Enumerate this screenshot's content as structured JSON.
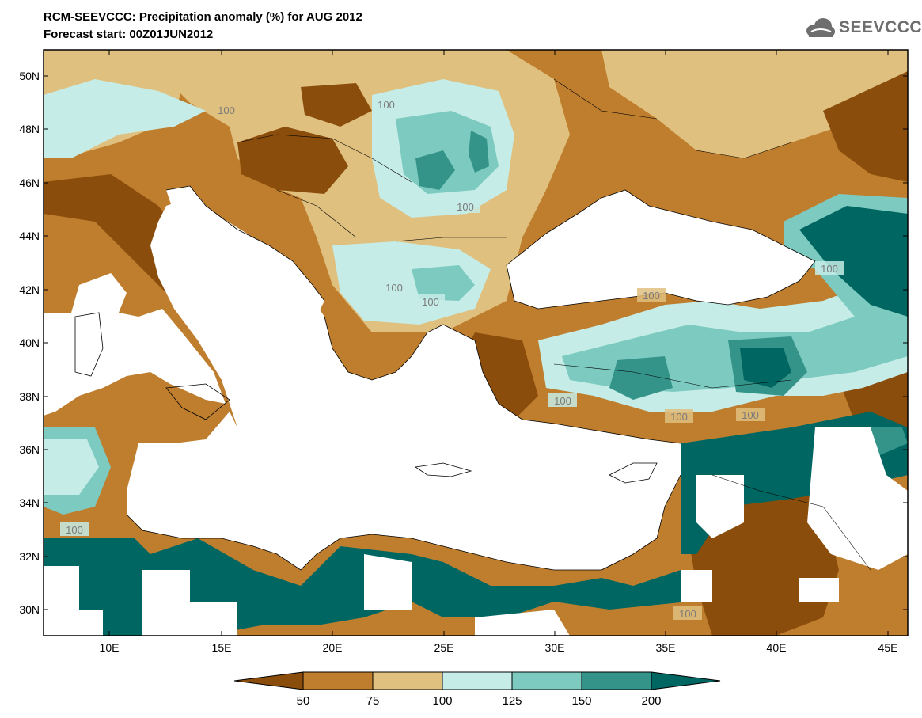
{
  "header": {
    "title": "RCM-SEEVCCC: Precipitation anomaly (%) for AUG 2012",
    "subtitle": "Forecast start: 00Z01JUN2012"
  },
  "logo": {
    "text": "SEEVCCC",
    "icon": "cloud-icon"
  },
  "map": {
    "lat_labels": [
      "50N",
      "48N",
      "46N",
      "44N",
      "42N",
      "40N",
      "38N",
      "36N",
      "34N",
      "32N",
      "30N"
    ],
    "lon_labels": [
      "10E",
      "15E",
      "20E",
      "25E",
      "30E",
      "35E",
      "40E",
      "45E"
    ],
    "contour_labels": [
      "100",
      "100",
      "100",
      "100",
      "100",
      "100",
      "100",
      "100",
      "100",
      "100",
      "100",
      "100"
    ]
  },
  "legend": {
    "colors": [
      "#8B4D0C",
      "#BF7E2E",
      "#DFC07F",
      "#C5ECE6",
      "#7CCAC0",
      "#35948A",
      "#006661"
    ],
    "labels": [
      "50",
      "75",
      "100",
      "125",
      "150",
      "200"
    ]
  },
  "colors": {
    "dark_brown": "#8B4D0C",
    "brown": "#BF7E2E",
    "tan": "#DFC07F",
    "pale_teal": "#C5ECE6",
    "light_teal": "#7CCAC0",
    "teal": "#35948A",
    "dark_teal": "#006661"
  }
}
